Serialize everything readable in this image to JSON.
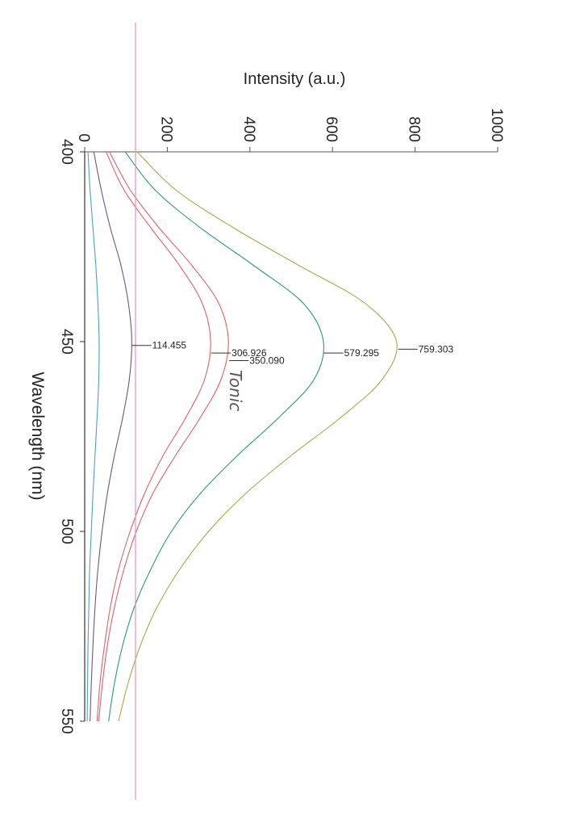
{
  "chart_data": {
    "type": "line",
    "orientation": "rotated 90 degrees clockwise (wavelength runs down the page, intensity runs to the right)",
    "xlabel": "Wavelength (nm)",
    "ylabel": "Intensity (a.u.)",
    "xlim": [
      400,
      550
    ],
    "ylim": [
      0,
      1000
    ],
    "x_ticks": [
      "400",
      "450",
      "500",
      "550"
    ],
    "y_ticks": [
      "0",
      "200",
      "400",
      "600",
      "800",
      "1000"
    ],
    "grid": false,
    "x": [
      400,
      410,
      420,
      430,
      440,
      450,
      460,
      470,
      480,
      490,
      500,
      510,
      520,
      530,
      540,
      550
    ],
    "series": [
      {
        "color": "#4aa3c8",
        "values": [
          8,
          13,
          20,
          27,
          32,
          35,
          34,
          30,
          25,
          20,
          16,
          12,
          10,
          8,
          7,
          6
        ]
      },
      {
        "color": "#6a5a78",
        "values": [
          22,
          40,
          62,
          88,
          106,
          114,
          108,
          92,
          72,
          55,
          42,
          32,
          25,
          20,
          16,
          13
        ]
      },
      {
        "color": "#e0606a",
        "values": [
          52,
          95,
          160,
          230,
          285,
          305,
          290,
          245,
          190,
          145,
          110,
          82,
          62,
          48,
          37,
          30
        ]
      },
      {
        "color": "#e0606a",
        "values": [
          60,
          110,
          180,
          260,
          325,
          348,
          330,
          280,
          220,
          165,
          125,
          95,
          72,
          55,
          43,
          34
        ]
      },
      {
        "color": "#2a9a78",
        "values": [
          98,
          170,
          280,
          410,
          530,
          578,
          555,
          470,
          370,
          280,
          210,
          160,
          120,
          92,
          72,
          58
        ]
      },
      {
        "color": "#a8a84a",
        "values": [
          127,
          220,
          360,
          520,
          680,
          755,
          720,
          620,
          500,
          390,
          300,
          230,
          175,
          135,
          105,
          82
        ]
      }
    ],
    "peak_labels": [
      {
        "text": "114.455",
        "wavelength": 451,
        "value": 114.455
      },
      {
        "text": "306.926",
        "wavelength": 453,
        "value": 306.926
      },
      {
        "text": "350.090",
        "wavelength": 455,
        "value": 350.09
      },
      {
        "text": "579.295",
        "wavelength": 453,
        "value": 579.295
      },
      {
        "text": "759.303",
        "wavelength": 452,
        "value": 759.303
      }
    ],
    "reference_line": {
      "value": 123,
      "color": "#e890b8"
    },
    "handwritten_note": "Tonic"
  }
}
